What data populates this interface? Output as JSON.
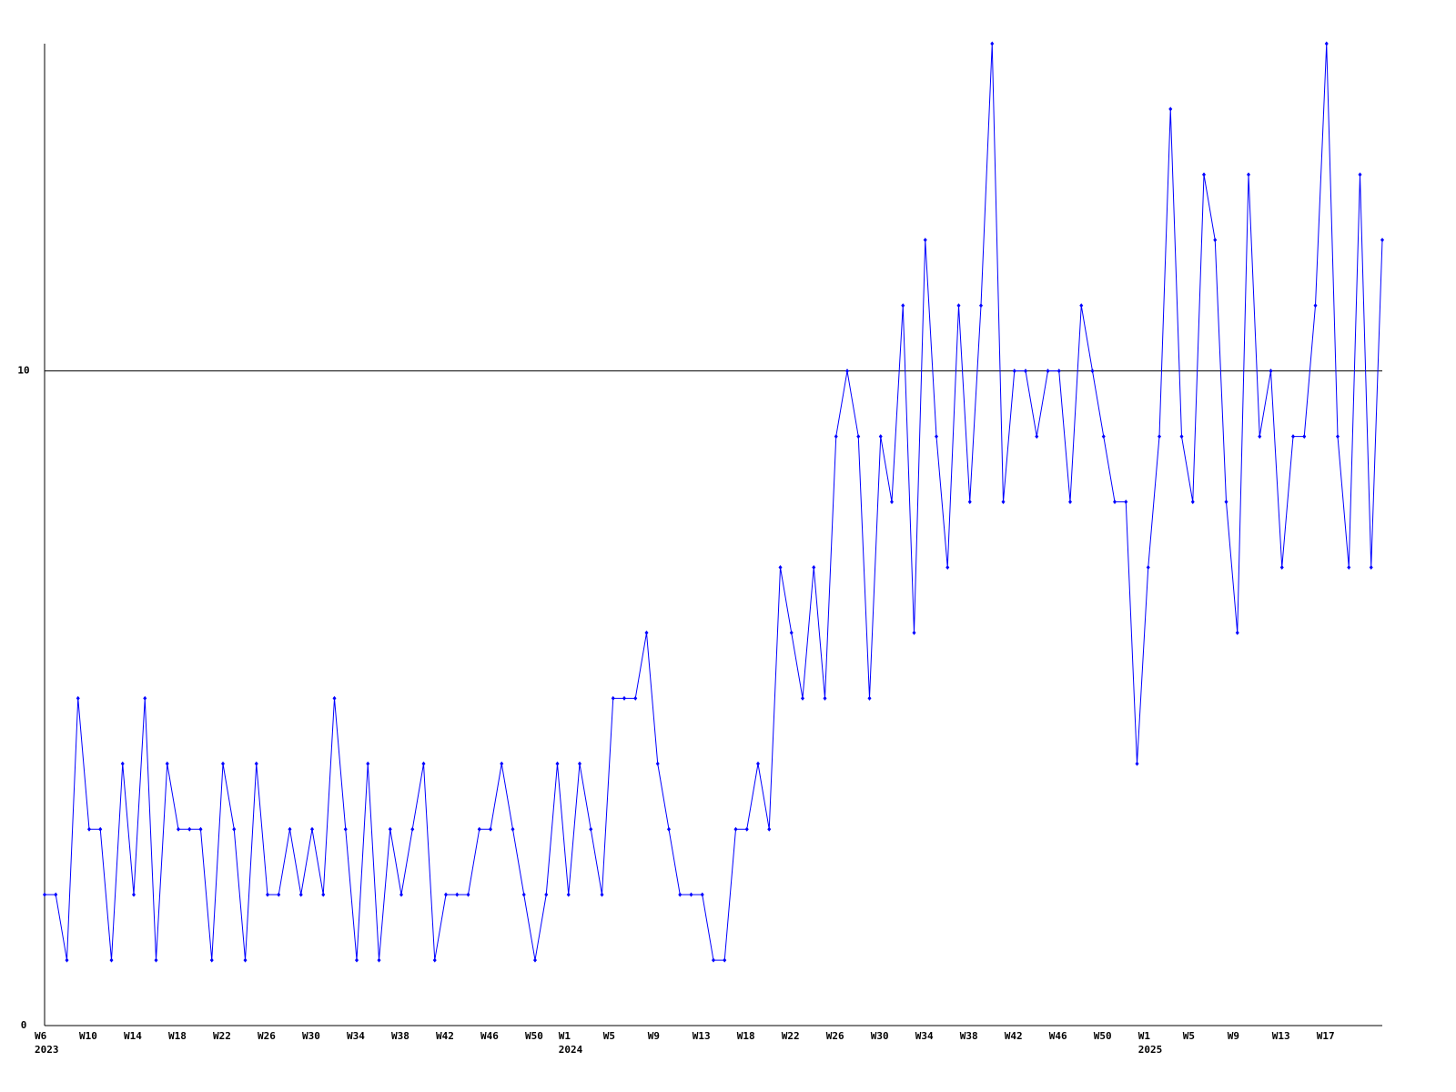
{
  "chart_data": {
    "type": "line",
    "categories": [
      "W6\n2023",
      null,
      null,
      null,
      "W10",
      null,
      null,
      null,
      "W14",
      null,
      null,
      null,
      "W18",
      null,
      null,
      null,
      "W22",
      null,
      null,
      null,
      "W26",
      null,
      null,
      null,
      "W30",
      null,
      null,
      null,
      "W34",
      null,
      null,
      null,
      "W38",
      null,
      null,
      null,
      "W42",
      null,
      null,
      null,
      "W46",
      null,
      null,
      null,
      "W50",
      null,
      null,
      "W1\n2024",
      null,
      null,
      null,
      "W5",
      null,
      null,
      null,
      "W9",
      null,
      null,
      null,
      "W13",
      null,
      null,
      null,
      "W18",
      null,
      null,
      null,
      "W22",
      null,
      null,
      null,
      "W26",
      null,
      null,
      null,
      "W30",
      null,
      null,
      null,
      "W34",
      null,
      null,
      null,
      "W38",
      null,
      null,
      null,
      "W42",
      null,
      null,
      null,
      "W46",
      null,
      null,
      null,
      "W50",
      null,
      null,
      null,
      "W1\n2025",
      null,
      null,
      null,
      "W5",
      null,
      null,
      null,
      "W9",
      null,
      null,
      null,
      "W13",
      null,
      null,
      null,
      "W17",
      null,
      null,
      null,
      null,
      null
    ],
    "values": [
      2,
      2,
      1,
      5,
      3,
      3,
      1,
      4,
      2,
      5,
      1,
      4,
      3,
      3,
      3,
      1,
      4,
      3,
      1,
      4,
      2,
      2,
      3,
      2,
      3,
      2,
      5,
      3,
      1,
      4,
      1,
      3,
      2,
      3,
      4,
      1,
      2,
      2,
      2,
      3,
      3,
      4,
      3,
      2,
      1,
      2,
      4,
      2,
      4,
      3,
      2,
      5,
      5,
      5,
      6,
      4,
      3,
      2,
      2,
      2,
      1,
      1,
      3,
      3,
      4,
      3,
      7,
      6,
      5,
      7,
      5,
      9,
      10,
      9,
      5,
      9,
      8,
      11,
      6,
      12,
      9,
      7,
      11,
      8,
      11,
      15,
      8,
      10,
      10,
      9,
      10,
      10,
      8,
      11,
      10,
      9,
      8,
      8,
      4,
      7,
      9,
      14,
      9,
      8,
      13,
      12,
      8,
      6,
      13,
      9,
      10,
      7,
      9,
      9,
      11,
      15,
      9,
      7,
      13,
      7,
      12
    ],
    "color": "#0000ff",
    "ylim": [
      0,
      15
    ],
    "yticks": [
      0,
      10
    ],
    "grid": true
  }
}
